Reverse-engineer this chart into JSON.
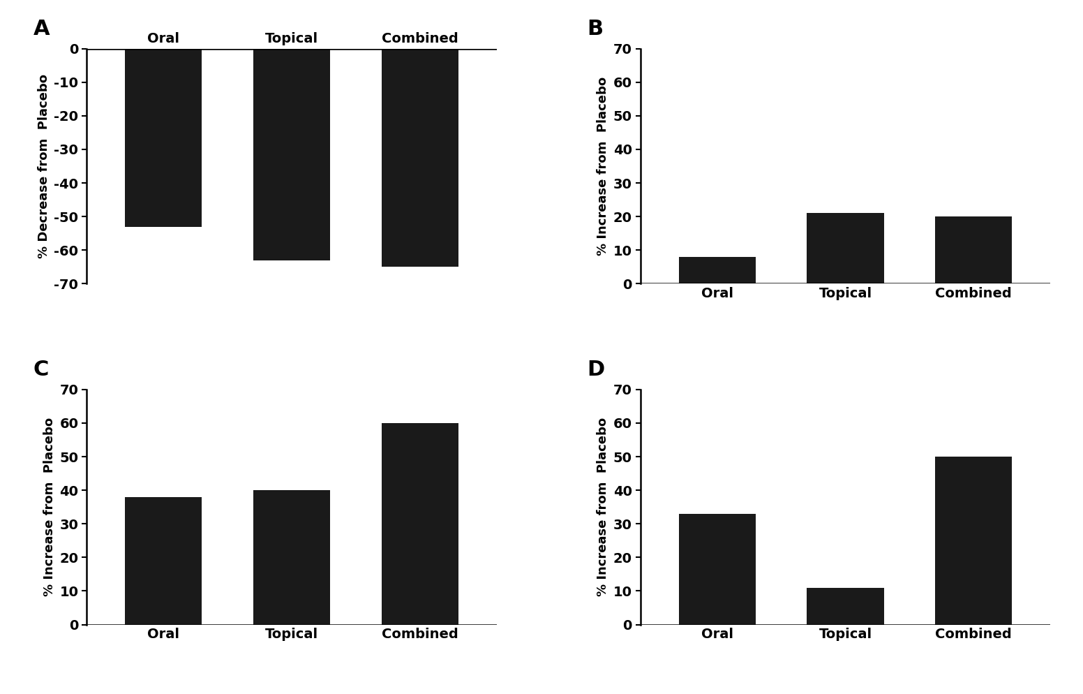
{
  "panels": [
    {
      "label": "A",
      "categories": [
        "Oral",
        "Topical",
        "Combined"
      ],
      "values": [
        -53,
        -63,
        -65
      ],
      "ylabel": "% Decrease from  Placebo",
      "ylim": [
        -70,
        0
      ],
      "yticks": [
        0,
        -10,
        -20,
        -30,
        -40,
        -50,
        -60,
        -70
      ],
      "ytick_labels": [
        "0",
        "-10",
        "-20",
        "-30",
        "-40",
        "-50",
        "-60",
        "-70"
      ],
      "xtick_labels_top": true
    },
    {
      "label": "B",
      "categories": [
        "Oral",
        "Topical",
        "Combined"
      ],
      "values": [
        8,
        21,
        20
      ],
      "ylabel": "% Increase from  Placebo",
      "ylim": [
        0,
        70
      ],
      "yticks": [
        0,
        10,
        20,
        30,
        40,
        50,
        60,
        70
      ],
      "ytick_labels": [
        "0",
        "10",
        "20",
        "30",
        "40",
        "50",
        "60",
        "70"
      ],
      "xtick_labels_top": false
    },
    {
      "label": "C",
      "categories": [
        "Oral",
        "Topical",
        "Combined"
      ],
      "values": [
        38,
        40,
        60
      ],
      "ylabel": "% Increase from  Placebo",
      "ylim": [
        0,
        70
      ],
      "yticks": [
        0,
        10,
        20,
        30,
        40,
        50,
        60,
        70
      ],
      "ytick_labels": [
        "0",
        "10",
        "20",
        "30",
        "40",
        "50",
        "60",
        "70"
      ],
      "xtick_labels_top": false
    },
    {
      "label": "D",
      "categories": [
        "Oral",
        "Topical",
        "Combined"
      ],
      "values": [
        33,
        11,
        50
      ],
      "ylabel": "% Increase from  Placebo",
      "ylim": [
        0,
        70
      ],
      "yticks": [
        0,
        10,
        20,
        30,
        40,
        50,
        60,
        70
      ],
      "ytick_labels": [
        "0",
        "10",
        "20",
        "30",
        "40",
        "50",
        "60",
        "70"
      ],
      "xtick_labels_top": false
    }
  ],
  "bar_color": "#1a1a1a",
  "bar_width": 0.6,
  "background_color": "#ffffff",
  "tick_fontsize": 14,
  "label_fontsize": 13,
  "panel_label_fontsize": 22,
  "spine_linewidth": 1.8
}
